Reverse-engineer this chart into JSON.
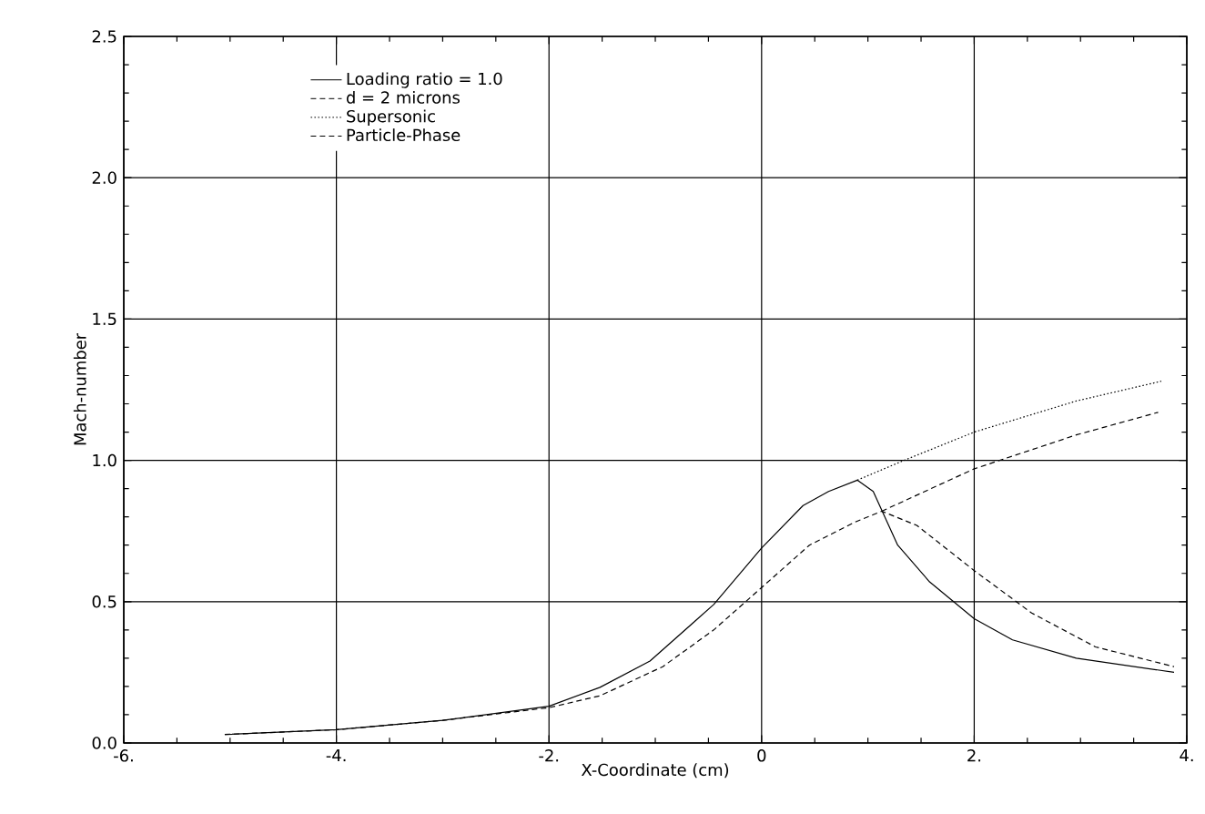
{
  "chart_data": {
    "type": "line",
    "xlabel": "X-Coordinate (cm)",
    "ylabel": "Mach-number",
    "xlim": [
      -6,
      4
    ],
    "ylim": [
      0,
      2.5
    ],
    "xticks": [
      {
        "value": -6,
        "label": "-6."
      },
      {
        "value": -4,
        "label": "-4."
      },
      {
        "value": -2,
        "label": "-2."
      },
      0,
      {
        "value": 2,
        "label": "2."
      },
      {
        "value": 4,
        "label": "4."
      }
    ],
    "yticks": [
      {
        "value": 0,
        "label": "0.0"
      },
      0.5,
      {
        "value": 1,
        "label": "1.0"
      },
      1.5,
      {
        "value": 2,
        "label": "2.0"
      },
      2.5
    ],
    "grid": true,
    "legend": "top",
    "marker": "none",
    "series": [
      {
        "name": "Loading ratio = 1.0",
        "color": "#000000",
        "line_style": "solid",
        "x": [
          -5.05,
          -4,
          -3,
          -2,
          -1.52,
          -1.05,
          -0.45,
          0,
          0.39,
          0.63,
          0.9,
          1.05,
          1.28,
          1.58,
          2.0,
          2.36,
          2.96,
          3.88
        ],
        "values": [
          0.03,
          0.047,
          0.08,
          0.13,
          0.197,
          0.29,
          0.49,
          0.69,
          0.84,
          0.89,
          0.93,
          0.89,
          0.7,
          0.57,
          0.44,
          0.365,
          0.3,
          0.25
        ]
      },
      {
        "name": "d = 2 microns",
        "color": "#000000",
        "line_style": "dashed",
        "x": [
          -5.05,
          -4,
          -3,
          -2,
          -1.52,
          -0.93,
          -0.45,
          0,
          0.45,
          0.87,
          1.13,
          1.46,
          2.0,
          2.54,
          3.14,
          3.88
        ],
        "values": [
          0.03,
          0.047,
          0.08,
          0.125,
          0.167,
          0.27,
          0.4,
          0.55,
          0.7,
          0.78,
          0.82,
          0.77,
          0.61,
          0.46,
          0.34,
          0.27
        ]
      },
      {
        "name": "Supersonic",
        "color": "#000000",
        "line_style": "dotted",
        "x": [
          0.9,
          1.34,
          2.0,
          2.96,
          3.76
        ],
        "values": [
          0.93,
          1.0,
          1.1,
          1.21,
          1.28
        ]
      },
      {
        "name": "Particle-Phase",
        "color": "#000000",
        "line_style": "dashed",
        "x": [
          1.13,
          2.0,
          2.96,
          3.73
        ],
        "values": [
          0.82,
          0.97,
          1.09,
          1.17
        ]
      }
    ]
  }
}
